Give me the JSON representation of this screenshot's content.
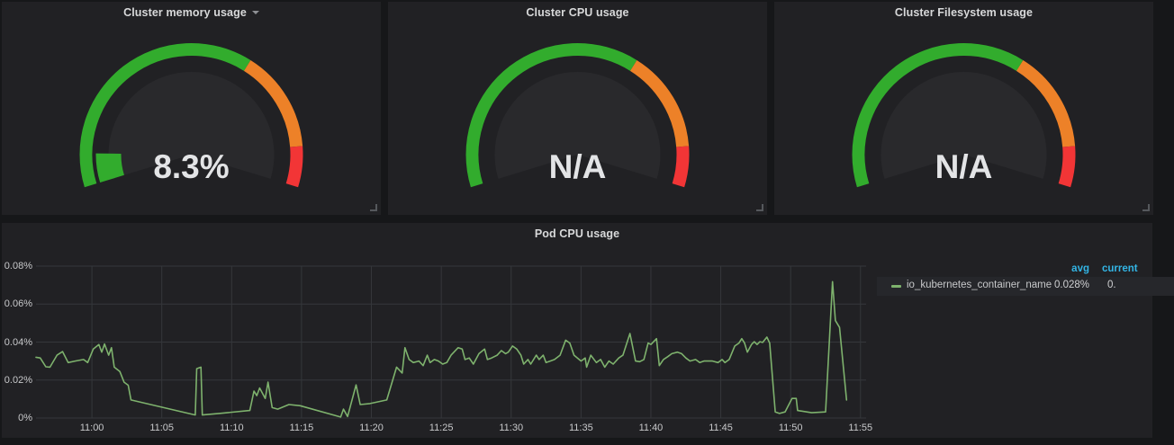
{
  "colors": {
    "page_bg": "#161719",
    "panel_bg": "#212124",
    "gauge_face": "#29292c",
    "gauge_green": "#32ac2d",
    "gauge_orange": "#ed8128",
    "gauge_red": "#f23536",
    "series_green": "#7eb26d",
    "grid": "#35373b",
    "legend_header_blue": "#33b5e5"
  },
  "panels": {
    "memory": {
      "title": "Cluster memory usage",
      "value": "8.3%",
      "percent": 8.3
    },
    "cpu": {
      "title": "Cluster CPU usage",
      "value": "N/A",
      "percent": null
    },
    "filesystem": {
      "title": "Cluster Filesystem usage",
      "value": "N/A",
      "percent": null
    },
    "pod_cpu": {
      "title": "Pod CPU usage"
    }
  },
  "gauge": {
    "sweep_deg": 214,
    "threshold_orange": 0.65,
    "threshold_red": 0.9
  },
  "legend": {
    "header_avg": "avg",
    "header_current": "current",
    "row_label": "io_kubernetes_container_name",
    "row_avg": "0.028%",
    "row_current": "0."
  },
  "chart_data": {
    "type": "line",
    "title": "Pod CPU usage",
    "xlabel": "",
    "ylabel": "",
    "ylim": [
      0,
      0.08
    ],
    "y_unit": "percent",
    "grid": true,
    "legend_position": "right-table",
    "x_start_time": "10:56",
    "x_domain_minutes": [
      0,
      59.4
    ],
    "y_ticks": [
      {
        "label": "0%",
        "v": 0
      },
      {
        "label": "0.02%",
        "v": 0.02
      },
      {
        "label": "0.04%",
        "v": 0.04
      },
      {
        "label": "0.06%",
        "v": 0.06
      },
      {
        "label": "0.08%",
        "v": 0.08
      }
    ],
    "x_ticks": [
      {
        "label": "11:00",
        "m": 4
      },
      {
        "label": "11:05",
        "m": 9
      },
      {
        "label": "11:10",
        "m": 14
      },
      {
        "label": "11:15",
        "m": 19
      },
      {
        "label": "11:20",
        "m": 24
      },
      {
        "label": "11:25",
        "m": 29
      },
      {
        "label": "11:30",
        "m": 34
      },
      {
        "label": "11:35",
        "m": 39
      },
      {
        "label": "11:40",
        "m": 44
      },
      {
        "label": "11:45",
        "m": 49
      },
      {
        "label": "11:50",
        "m": 54
      },
      {
        "label": "11:55",
        "m": 59
      }
    ],
    "series": [
      {
        "name": "io_kubernetes_container_name",
        "color": "#7eb26d",
        "avg": "0.028%",
        "points": [
          [
            0,
            0.032
          ],
          [
            0.3,
            0.0316
          ],
          [
            0.7,
            0.027
          ],
          [
            1,
            0.0268
          ],
          [
            1.5,
            0.0331
          ],
          [
            1.9,
            0.035
          ],
          [
            2.3,
            0.0292
          ],
          [
            2.8,
            0.03
          ],
          [
            3.4,
            0.0308
          ],
          [
            3.7,
            0.0292
          ],
          [
            4.1,
            0.0363
          ],
          [
            4.5,
            0.0387
          ],
          [
            4.7,
            0.0347
          ],
          [
            4.9,
            0.039
          ],
          [
            5.2,
            0.0331
          ],
          [
            5.4,
            0.037
          ],
          [
            5.6,
            0.0268
          ],
          [
            6,
            0.0245
          ],
          [
            6.3,
            0.0189
          ],
          [
            6.6,
            0.0173
          ],
          [
            6.8,
            0.0095
          ],
          [
            11.4,
            0.0016
          ],
          [
            11.5,
            0.026
          ],
          [
            11.8,
            0.0268
          ],
          [
            11.9,
            0.0016
          ],
          [
            13.1,
            0.0024
          ],
          [
            15.3,
            0.004
          ],
          [
            15.6,
            0.0142
          ],
          [
            15.8,
            0.0118
          ],
          [
            16,
            0.0158
          ],
          [
            16.4,
            0.0103
          ],
          [
            16.6,
            0.0189
          ],
          [
            16.9,
            0.0055
          ],
          [
            17.3,
            0.0047
          ],
          [
            18.1,
            0.0071
          ],
          [
            18.9,
            0.0065
          ],
          [
            21.8,
            0.0005
          ],
          [
            22,
            0.0047
          ],
          [
            22.3,
            0.0008
          ],
          [
            22.9,
            0.0174
          ],
          [
            23.2,
            0.0071
          ],
          [
            23.9,
            0.0076
          ],
          [
            25.1,
            0.0095
          ],
          [
            25.8,
            0.0268
          ],
          [
            26.2,
            0.0237
          ],
          [
            26.4,
            0.037
          ],
          [
            26.7,
            0.0308
          ],
          [
            27,
            0.0292
          ],
          [
            27.4,
            0.03
          ],
          [
            27.7,
            0.0276
          ],
          [
            28,
            0.0331
          ],
          [
            28.2,
            0.0292
          ],
          [
            28.5,
            0.0308
          ],
          [
            28.8,
            0.03
          ],
          [
            29.1,
            0.0284
          ],
          [
            29.4,
            0.0292
          ],
          [
            29.7,
            0.0331
          ],
          [
            30.2,
            0.037
          ],
          [
            30.5,
            0.0363
          ],
          [
            30.7,
            0.0308
          ],
          [
            31,
            0.0316
          ],
          [
            31.3,
            0.0284
          ],
          [
            31.7,
            0.0339
          ],
          [
            32.1,
            0.0363
          ],
          [
            32.3,
            0.0308
          ],
          [
            32.6,
            0.0316
          ],
          [
            33,
            0.0331
          ],
          [
            33.3,
            0.0355
          ],
          [
            33.6,
            0.0339
          ],
          [
            33.8,
            0.0347
          ],
          [
            34.1,
            0.0379
          ],
          [
            34.4,
            0.0363
          ],
          [
            34.7,
            0.0331
          ],
          [
            34.9,
            0.0284
          ],
          [
            35.2,
            0.0308
          ],
          [
            35.4,
            0.0284
          ],
          [
            35.8,
            0.0331
          ],
          [
            36,
            0.0308
          ],
          [
            36.3,
            0.0331
          ],
          [
            36.5,
            0.0292
          ],
          [
            36.8,
            0.03
          ],
          [
            37.1,
            0.0308
          ],
          [
            37.5,
            0.0331
          ],
          [
            37.9,
            0.041
          ],
          [
            38.2,
            0.0395
          ],
          [
            38.5,
            0.0331
          ],
          [
            39,
            0.03
          ],
          [
            39.3,
            0.0316
          ],
          [
            39.4,
            0.0268
          ],
          [
            39.7,
            0.0331
          ],
          [
            40.1,
            0.0292
          ],
          [
            40.4,
            0.0308
          ],
          [
            40.7,
            0.0268
          ],
          [
            41,
            0.03
          ],
          [
            41.3,
            0.0284
          ],
          [
            41.7,
            0.0316
          ],
          [
            42,
            0.0331
          ],
          [
            42.5,
            0.0445
          ],
          [
            42.9,
            0.03
          ],
          [
            43.2,
            0.0297
          ],
          [
            43.5,
            0.0308
          ],
          [
            43.8,
            0.0395
          ],
          [
            44,
            0.0387
          ],
          [
            44.4,
            0.0418
          ],
          [
            44.6,
            0.0276
          ],
          [
            44.9,
            0.0308
          ],
          [
            45.2,
            0.0323
          ],
          [
            45.5,
            0.0339
          ],
          [
            45.9,
            0.0347
          ],
          [
            46.2,
            0.0339
          ],
          [
            46.5,
            0.0316
          ],
          [
            46.8,
            0.03
          ],
          [
            47.2,
            0.0308
          ],
          [
            47.5,
            0.0292
          ],
          [
            47.8,
            0.03
          ],
          [
            48.4,
            0.03
          ],
          [
            48.8,
            0.0292
          ],
          [
            49.1,
            0.0308
          ],
          [
            49.3,
            0.0292
          ],
          [
            49.6,
            0.0308
          ],
          [
            50,
            0.0379
          ],
          [
            50.3,
            0.0395
          ],
          [
            50.5,
            0.0418
          ],
          [
            50.7,
            0.0395
          ],
          [
            50.9,
            0.0347
          ],
          [
            51.2,
            0.0387
          ],
          [
            51.4,
            0.0402
          ],
          [
            51.6,
            0.0387
          ],
          [
            51.8,
            0.0402
          ],
          [
            52,
            0.0398
          ],
          [
            52.3,
            0.0426
          ],
          [
            52.5,
            0.0395
          ],
          [
            52.9,
            0.0032
          ],
          [
            53.2,
            0.0024
          ],
          [
            53.6,
            0.0032
          ],
          [
            54.1,
            0.0103
          ],
          [
            54.4,
            0.0103
          ],
          [
            54.5,
            0.004
          ],
          [
            55.5,
            0.0028
          ],
          [
            56.5,
            0.0032
          ],
          [
            57,
            0.0718
          ],
          [
            57.2,
            0.0513
          ],
          [
            57.5,
            0.0477
          ],
          [
            58,
            0.0095
          ]
        ]
      }
    ]
  }
}
